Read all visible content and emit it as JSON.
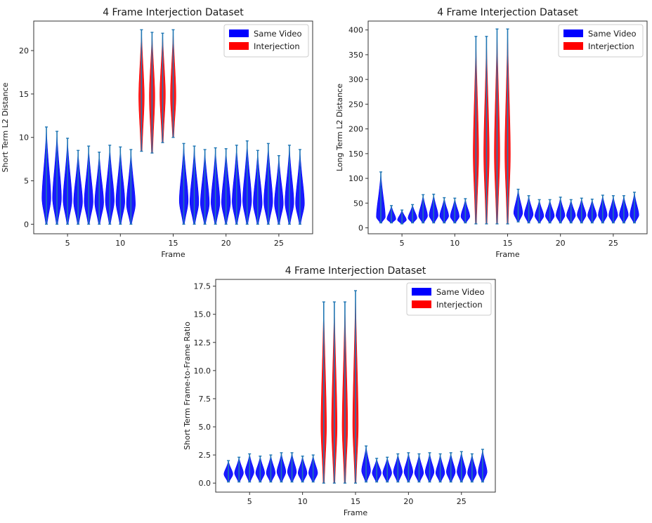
{
  "chart_data": [
    {
      "type": "violin",
      "title": "4 Frame Interjection Dataset",
      "xlabel": "Frame",
      "ylabel": "Short Term L2 Distance",
      "xlim": [
        1.8,
        28.2
      ],
      "ylim": [
        -1.1,
        23.4
      ],
      "xticks": [
        5,
        10,
        15,
        20,
        25
      ],
      "yticks": [
        0,
        5,
        10,
        15,
        20
      ],
      "legend": {
        "position": "top-right",
        "entries": [
          {
            "label": "Same Video",
            "color": "#0000ff"
          },
          {
            "label": "Interjection",
            "color": "#ff0000"
          }
        ]
      },
      "series": [
        {
          "name": "Same Video",
          "color": "#0000ff",
          "violins": [
            {
              "x": 3,
              "min": 0,
              "max": 11.2,
              "center": 3.0
            },
            {
              "x": 4,
              "min": 0,
              "max": 10.7,
              "center": 3.0
            },
            {
              "x": 5,
              "min": 0,
              "max": 9.9,
              "center": 2.8
            },
            {
              "x": 6,
              "min": 0,
              "max": 8.5,
              "center": 2.6
            },
            {
              "x": 7,
              "min": 0,
              "max": 9.0,
              "center": 2.6
            },
            {
              "x": 8,
              "min": 0,
              "max": 8.3,
              "center": 2.5
            },
            {
              "x": 9,
              "min": 0,
              "max": 9.1,
              "center": 2.7
            },
            {
              "x": 10,
              "min": 0,
              "max": 8.9,
              "center": 2.6
            },
            {
              "x": 11,
              "min": 0,
              "max": 8.6,
              "center": 2.3
            },
            {
              "x": 16,
              "min": 0,
              "max": 9.3,
              "center": 2.7
            },
            {
              "x": 17,
              "min": 0,
              "max": 9.0,
              "center": 2.5
            },
            {
              "x": 18,
              "min": 0,
              "max": 8.6,
              "center": 2.4
            },
            {
              "x": 19,
              "min": 0,
              "max": 8.8,
              "center": 2.5
            },
            {
              "x": 20,
              "min": 0,
              "max": 8.7,
              "center": 2.5
            },
            {
              "x": 21,
              "min": 0,
              "max": 9.1,
              "center": 2.6
            },
            {
              "x": 22,
              "min": 0,
              "max": 9.6,
              "center": 2.7
            },
            {
              "x": 23,
              "min": 0,
              "max": 8.5,
              "center": 2.4
            },
            {
              "x": 24,
              "min": 0,
              "max": 9.3,
              "center": 2.6
            },
            {
              "x": 25,
              "min": 0,
              "max": 7.9,
              "center": 2.4
            },
            {
              "x": 26,
              "min": 0,
              "max": 9.1,
              "center": 2.5
            },
            {
              "x": 27,
              "min": 0,
              "max": 8.6,
              "center": 2.4
            }
          ]
        },
        {
          "name": "Interjection",
          "color": "#ff0000",
          "violins": [
            {
              "x": 12,
              "min": 8.4,
              "max": 22.4,
              "center": 14.7
            },
            {
              "x": 13,
              "min": 8.2,
              "max": 22.1,
              "center": 14.8
            },
            {
              "x": 14,
              "min": 9.4,
              "max": 22.0,
              "center": 15.0
            },
            {
              "x": 15,
              "min": 10.0,
              "max": 22.4,
              "center": 14.8
            }
          ]
        }
      ]
    },
    {
      "type": "violin",
      "title": "4 Frame Interjection Dataset",
      "xlabel": "Frame",
      "ylabel": "Long Term L2 Distance",
      "xlim": [
        1.8,
        28.2
      ],
      "ylim": [
        -12,
        418
      ],
      "xticks": [
        5,
        10,
        15,
        20,
        25
      ],
      "yticks": [
        0,
        50,
        100,
        150,
        200,
        250,
        300,
        350,
        400
      ],
      "legend": {
        "position": "top-right",
        "entries": [
          {
            "label": "Same Video",
            "color": "#0000ff"
          },
          {
            "label": "Interjection",
            "color": "#ff0000"
          }
        ]
      },
      "series": [
        {
          "name": "Same Video",
          "color": "#0000ff",
          "violins": [
            {
              "x": 3,
              "min": 10,
              "max": 113,
              "center": 22
            },
            {
              "x": 4,
              "min": 10,
              "max": 45,
              "center": 18
            },
            {
              "x": 5,
              "min": 8,
              "max": 36,
              "center": 16
            },
            {
              "x": 6,
              "min": 10,
              "max": 47,
              "center": 20
            },
            {
              "x": 7,
              "min": 10,
              "max": 67,
              "center": 24
            },
            {
              "x": 8,
              "min": 10,
              "max": 68,
              "center": 25
            },
            {
              "x": 9,
              "min": 10,
              "max": 61,
              "center": 24
            },
            {
              "x": 10,
              "min": 10,
              "max": 60,
              "center": 23
            },
            {
              "x": 11,
              "min": 10,
              "max": 59,
              "center": 23
            },
            {
              "x": 16,
              "min": 12,
              "max": 78,
              "center": 30
            },
            {
              "x": 17,
              "min": 10,
              "max": 65,
              "center": 27
            },
            {
              "x": 18,
              "min": 10,
              "max": 57,
              "center": 24
            },
            {
              "x": 19,
              "min": 10,
              "max": 57,
              "center": 24
            },
            {
              "x": 20,
              "min": 10,
              "max": 62,
              "center": 25
            },
            {
              "x": 21,
              "min": 10,
              "max": 57,
              "center": 25
            },
            {
              "x": 22,
              "min": 10,
              "max": 60,
              "center": 26
            },
            {
              "x": 23,
              "min": 10,
              "max": 58,
              "center": 25
            },
            {
              "x": 24,
              "min": 10,
              "max": 66,
              "center": 26
            },
            {
              "x": 25,
              "min": 10,
              "max": 65,
              "center": 25
            },
            {
              "x": 26,
              "min": 10,
              "max": 65,
              "center": 26
            },
            {
              "x": 27,
              "min": 10,
              "max": 72,
              "center": 26
            }
          ]
        },
        {
          "name": "Interjection",
          "color": "#ff0000",
          "violins": [
            {
              "x": 12,
              "min": 8,
              "max": 387,
              "center": 150
            },
            {
              "x": 13,
              "min": 8,
              "max": 387,
              "center": 150
            },
            {
              "x": 14,
              "min": 8,
              "max": 402,
              "center": 150
            },
            {
              "x": 15,
              "min": 8,
              "max": 402,
              "center": 150
            }
          ]
        }
      ]
    },
    {
      "type": "violin",
      "title": "4 Frame Interjection Dataset",
      "xlabel": "Frame",
      "ylabel": "Short Term Frame-to-Frame Ratio",
      "xlim": [
        1.8,
        28.2
      ],
      "ylim": [
        -0.8,
        18.1
      ],
      "xticks": [
        5,
        10,
        15,
        20,
        25
      ],
      "yticks": [
        0.0,
        2.5,
        5.0,
        7.5,
        10.0,
        12.5,
        15.0,
        17.5
      ],
      "ytick_labels": [
        "0.0",
        "2.5",
        "5.0",
        "7.5",
        "10.0",
        "12.5",
        "15.0",
        "17.5"
      ],
      "legend": {
        "position": "top-right",
        "entries": [
          {
            "label": "Same Video",
            "color": "#0000ff"
          },
          {
            "label": "Interjection",
            "color": "#ff0000"
          }
        ]
      },
      "series": [
        {
          "name": "Same Video",
          "color": "#0000ff",
          "violins": [
            {
              "x": 3,
              "min": 0.1,
              "max": 2.0,
              "center": 0.8
            },
            {
              "x": 4,
              "min": 0.1,
              "max": 2.3,
              "center": 0.9
            },
            {
              "x": 5,
              "min": 0.1,
              "max": 2.6,
              "center": 1.0
            },
            {
              "x": 6,
              "min": 0.1,
              "max": 2.4,
              "center": 0.9
            },
            {
              "x": 7,
              "min": 0.1,
              "max": 2.5,
              "center": 0.9
            },
            {
              "x": 8,
              "min": 0.1,
              "max": 2.7,
              "center": 1.0
            },
            {
              "x": 9,
              "min": 0.1,
              "max": 2.7,
              "center": 1.0
            },
            {
              "x": 10,
              "min": 0.1,
              "max": 2.4,
              "center": 0.9
            },
            {
              "x": 11,
              "min": 0.1,
              "max": 2.5,
              "center": 0.9
            },
            {
              "x": 16,
              "min": 0.1,
              "max": 3.3,
              "center": 1.1
            },
            {
              "x": 17,
              "min": 0.1,
              "max": 2.2,
              "center": 0.9
            },
            {
              "x": 18,
              "min": 0.1,
              "max": 2.3,
              "center": 0.9
            },
            {
              "x": 19,
              "min": 0.1,
              "max": 2.6,
              "center": 1.0
            },
            {
              "x": 20,
              "min": 0.1,
              "max": 2.7,
              "center": 1.0
            },
            {
              "x": 21,
              "min": 0.1,
              "max": 2.6,
              "center": 0.9
            },
            {
              "x": 22,
              "min": 0.1,
              "max": 2.7,
              "center": 1.0
            },
            {
              "x": 23,
              "min": 0.1,
              "max": 2.6,
              "center": 0.9
            },
            {
              "x": 24,
              "min": 0.1,
              "max": 2.7,
              "center": 1.0
            },
            {
              "x": 25,
              "min": 0.1,
              "max": 2.8,
              "center": 1.0
            },
            {
              "x": 26,
              "min": 0.1,
              "max": 2.6,
              "center": 0.9
            },
            {
              "x": 27,
              "min": 0.1,
              "max": 3.0,
              "center": 1.0
            }
          ]
        },
        {
          "name": "Interjection",
          "color": "#ff0000",
          "violins": [
            {
              "x": 12,
              "min": 0.0,
              "max": 16.1,
              "center": 5.0
            },
            {
              "x": 13,
              "min": 0.0,
              "max": 16.1,
              "center": 5.0
            },
            {
              "x": 14,
              "min": 0.0,
              "max": 16.1,
              "center": 5.0
            },
            {
              "x": 15,
              "min": 0.0,
              "max": 17.1,
              "center": 5.2
            }
          ]
        }
      ]
    }
  ]
}
